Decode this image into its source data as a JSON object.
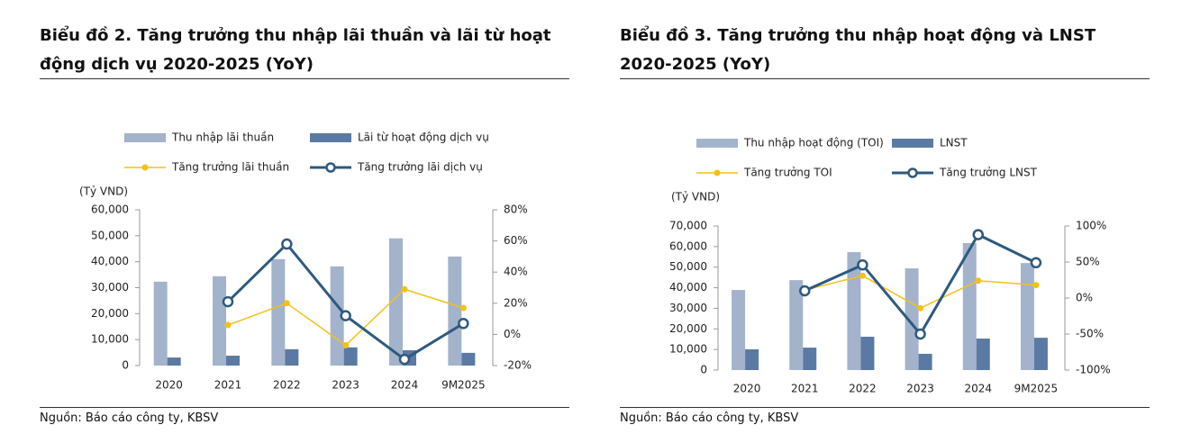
{
  "chart_data": [
    {
      "type": "combo",
      "title": "Biểu đồ 2. Tăng trưởng thu nhập lãi thuần và lãi từ hoạt động dịch vụ 2020-2025 (YoY)",
      "ylabel": "(Tỷ VND)",
      "source": "Nguồn: Báo cáo công ty, KBSV",
      "categories": [
        "2020",
        "2021",
        "2022",
        "2023",
        "2024",
        "9M2025"
      ],
      "ylim": [
        0,
        60000
      ],
      "yticks": [
        0,
        {
          "value": 10000,
          "label": "10,000"
        },
        {
          "value": 20000,
          "label": "20,000"
        },
        {
          "value": 30000,
          "label": "30,000"
        },
        {
          "value": 40000,
          "label": "40,000"
        },
        {
          "value": 50000,
          "label": "50,000"
        },
        {
          "value": 60000,
          "label": "60,000"
        }
      ],
      "y2lim": [
        -20,
        80
      ],
      "y2ticks": [
        {
          "value": -20,
          "label": "-20%"
        },
        {
          "value": 0,
          "label": "0%"
        },
        {
          "value": 20,
          "label": "20%"
        },
        {
          "value": 40,
          "label": "40%"
        },
        {
          "value": 60,
          "label": "60%"
        },
        {
          "value": 80,
          "label": "80%"
        }
      ],
      "series": [
        {
          "name": "Thu nhập lãi thuần",
          "type": "bar",
          "color": "#a3b3cc",
          "values": [
            32300,
            34400,
            41000,
            38200,
            49000,
            42000
          ]
        },
        {
          "name": "Lãi từ hoạt động dịch vụ",
          "type": "bar",
          "color": "#5b7aa3",
          "values": [
            3100,
            3800,
            6300,
            7000,
            5900,
            4900
          ]
        },
        {
          "name": "Tăng trưởng lãi thuần",
          "type": "line",
          "axis": "y2",
          "marker": "filled",
          "color": "#f5c018",
          "values": [
            null,
            6,
            20,
            -7,
            29,
            17
          ]
        },
        {
          "name": "Tăng trưởng lãi dịch vụ",
          "type": "line",
          "axis": "y2",
          "marker": "hollow",
          "color": "#2e5a7e",
          "values": [
            null,
            21,
            58,
            12,
            -16,
            7
          ]
        }
      ]
    },
    {
      "type": "combo",
      "title": "Biểu đồ 3. Tăng trưởng thu nhập hoạt động và LNST 2020-2025 (YoY)",
      "ylabel": "(Tỷ VND)",
      "source": "Nguồn: Báo cáo công ty, KBSV",
      "categories": [
        "2020",
        "2021",
        "2022",
        "2023",
        "2024",
        "9M2025"
      ],
      "ylim": [
        0,
        70000
      ],
      "yticks": [
        0,
        {
          "value": 10000,
          "label": "10,000"
        },
        {
          "value": 20000,
          "label": "20,000"
        },
        {
          "value": 30000,
          "label": "30,000"
        },
        {
          "value": 40000,
          "label": "40,000"
        },
        {
          "value": 50000,
          "label": "50,000"
        },
        {
          "value": 60000,
          "label": "60,000"
        },
        {
          "value": 70000,
          "label": "70,000"
        }
      ],
      "y2lim": [
        -100,
        100
      ],
      "y2ticks": [
        {
          "value": -100,
          "label": "-100%"
        },
        {
          "value": -50,
          "label": "-50%"
        },
        {
          "value": 0,
          "label": "0%"
        },
        {
          "value": 50,
          "label": "50%"
        },
        {
          "value": 100,
          "label": "100%"
        }
      ],
      "series": [
        {
          "name": "Thu nhập hoạt động (TOI)",
          "type": "bar",
          "color": "#a3b3cc",
          "values": [
            38900,
            43700,
            57300,
            49400,
            61700,
            52000
          ]
        },
        {
          "name": "LNST",
          "type": "bar",
          "color": "#5b7aa3",
          "values": [
            10100,
            10900,
            16200,
            7900,
            15300,
            15700
          ]
        },
        {
          "name": "Tăng trưởng TOI",
          "type": "line",
          "axis": "y2",
          "marker": "filled",
          "color": "#f5c018",
          "values": [
            null,
            11,
            31,
            -14,
            24,
            18
          ]
        },
        {
          "name": "Tăng trưởng LNST",
          "type": "line",
          "axis": "y2",
          "marker": "hollow",
          "color": "#2e5a7e",
          "values": [
            null,
            10,
            46,
            -50,
            88,
            49
          ]
        }
      ]
    }
  ]
}
